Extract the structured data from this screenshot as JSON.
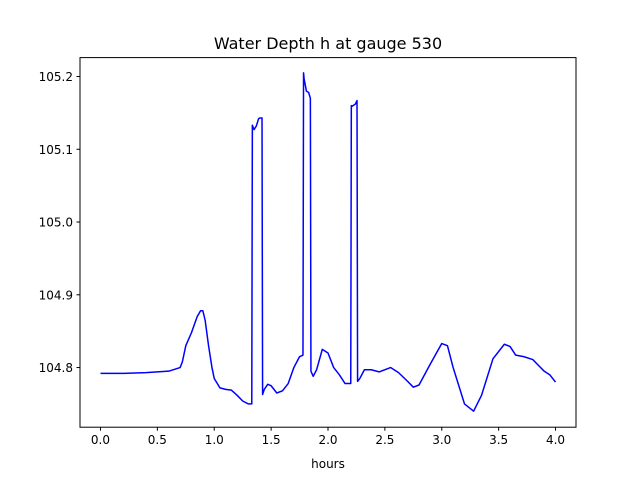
{
  "chart_data": {
    "type": "line",
    "title": "Water Depth h at gauge 530",
    "xlabel": "hours",
    "ylabel": "",
    "xlim": [
      -0.18,
      4.18
    ],
    "ylim": [
      104.718,
      105.226
    ],
    "xticks": [
      0.0,
      0.5,
      1.0,
      1.5,
      2.0,
      2.5,
      3.0,
      3.5,
      4.0
    ],
    "xtick_labels": [
      "0.0",
      "0.5",
      "1.0",
      "1.5",
      "2.0",
      "2.5",
      "3.0",
      "3.5",
      "4.0"
    ],
    "yticks": [
      104.8,
      104.9,
      105.0,
      105.1,
      105.2
    ],
    "ytick_labels": [
      "104.8",
      "104.9",
      "105.0",
      "105.1",
      "105.2"
    ],
    "grid": false,
    "series": [
      {
        "color": "#0000ff",
        "x": [
          0.0,
          0.2,
          0.4,
          0.6,
          0.7,
          0.72,
          0.75,
          0.8,
          0.85,
          0.88,
          0.9,
          0.92,
          0.95,
          0.98,
          1.0,
          1.05,
          1.1,
          1.15,
          1.2,
          1.25,
          1.3,
          1.33,
          1.335,
          1.35,
          1.37,
          1.39,
          1.4,
          1.42,
          1.425,
          1.44,
          1.47,
          1.5,
          1.55,
          1.6,
          1.65,
          1.7,
          1.75,
          1.78,
          1.785,
          1.79,
          1.81,
          1.83,
          1.845,
          1.85,
          1.87,
          1.9,
          1.95,
          2.0,
          2.05,
          2.1,
          2.15,
          2.2,
          2.205,
          2.21,
          2.24,
          2.255,
          2.26,
          2.28,
          2.32,
          2.38,
          2.45,
          2.55,
          2.62,
          2.7,
          2.75,
          2.8,
          2.9,
          3.0,
          3.05,
          3.1,
          3.2,
          3.28,
          3.35,
          3.45,
          3.55,
          3.6,
          3.65,
          3.72,
          3.8,
          3.85,
          3.9,
          3.95,
          4.0
        ],
        "y": [
          104.792,
          104.792,
          104.793,
          104.795,
          104.8,
          104.808,
          104.83,
          104.848,
          104.87,
          104.878,
          104.878,
          104.865,
          104.83,
          104.8,
          104.785,
          104.772,
          104.77,
          104.769,
          104.762,
          104.754,
          104.75,
          104.75,
          105.133,
          105.127,
          105.132,
          105.142,
          105.143,
          105.143,
          104.763,
          104.77,
          104.777,
          104.775,
          104.765,
          104.768,
          104.778,
          104.8,
          104.815,
          104.817,
          105.205,
          105.197,
          105.18,
          105.178,
          105.17,
          104.795,
          104.788,
          104.797,
          104.825,
          104.82,
          104.8,
          104.79,
          104.778,
          104.778,
          105.16,
          105.159,
          105.162,
          105.167,
          104.781,
          104.785,
          104.797,
          104.797,
          104.794,
          104.8,
          104.793,
          104.781,
          104.773,
          104.776,
          104.805,
          104.833,
          104.83,
          104.8,
          104.75,
          104.74,
          104.762,
          104.812,
          104.832,
          104.829,
          104.817,
          104.815,
          104.811,
          104.803,
          104.795,
          104.79,
          104.78
        ]
      }
    ]
  }
}
